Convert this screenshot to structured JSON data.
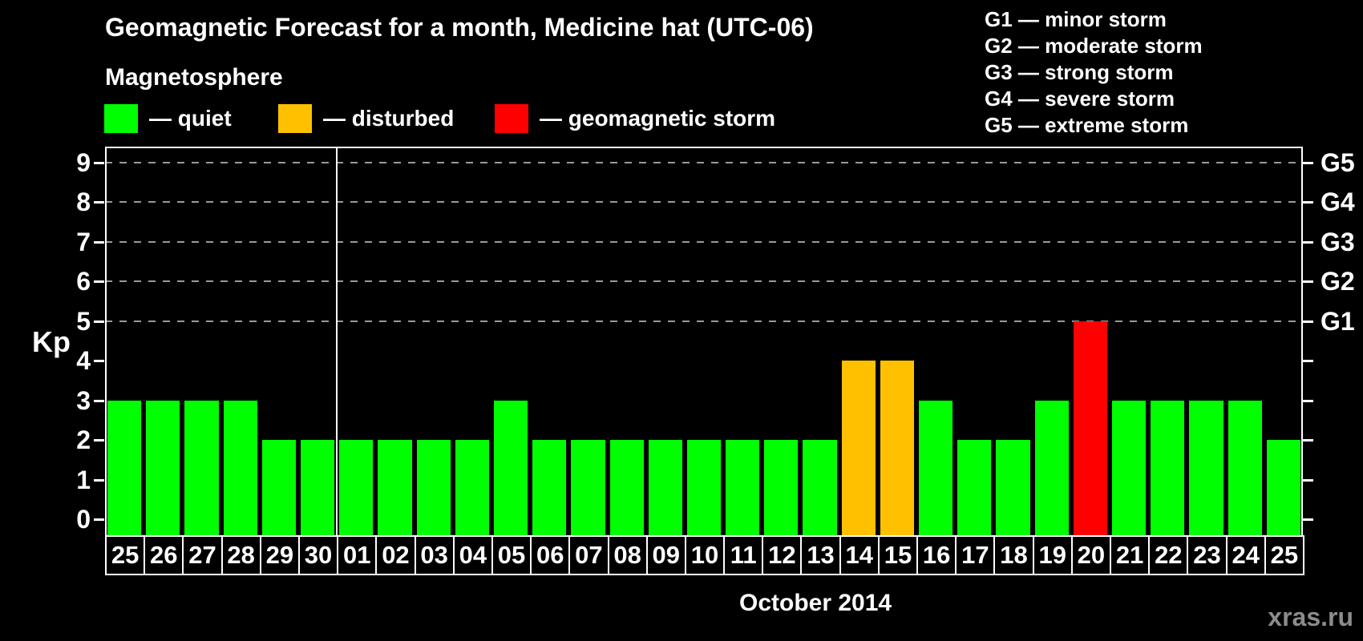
{
  "header": {
    "title": "Geomagnetic Forecast for a month, Medicine hat (UTC-06)",
    "subtitle": "Magnetosphere",
    "legend": [
      {
        "key": "quiet",
        "label": "— quiet",
        "color": "#00FF00"
      },
      {
        "key": "disturbed",
        "label": "— disturbed",
        "color": "#FFC000"
      },
      {
        "key": "storm",
        "label": "— geomagnetic storm",
        "color": "#FF0000"
      }
    ]
  },
  "g_scale": [
    "G1 — minor storm",
    "G2 — moderate storm",
    "G3 — strong storm",
    "G4 — severe storm",
    "G5 — extreme storm"
  ],
  "axes": {
    "y_title": "Kp",
    "x_title": "October 2014",
    "y_ticks": [
      "0",
      "1",
      "2",
      "3",
      "4",
      "5",
      "6",
      "7",
      "8",
      "9"
    ],
    "right_labels": [
      {
        "value": 5,
        "label": "G1"
      },
      {
        "value": 6,
        "label": "G2"
      },
      {
        "value": 7,
        "label": "G3"
      },
      {
        "value": 8,
        "label": "G4"
      },
      {
        "value": 9,
        "label": "G5"
      }
    ]
  },
  "watermark": "xras.ru",
  "chart_data": {
    "type": "bar",
    "title": "Geomagnetic Forecast for a month, Medicine hat (UTC-06)",
    "xlabel": "October 2014",
    "ylabel": "Kp",
    "ylim": [
      0,
      9
    ],
    "categories": [
      "25",
      "26",
      "27",
      "28",
      "29",
      "30",
      "01",
      "02",
      "03",
      "04",
      "05",
      "06",
      "07",
      "08",
      "09",
      "10",
      "11",
      "12",
      "13",
      "14",
      "15",
      "16",
      "17",
      "18",
      "19",
      "20",
      "21",
      "22",
      "23",
      "24",
      "25"
    ],
    "values": [
      3,
      3,
      3,
      3,
      2,
      2,
      2,
      2,
      2,
      2,
      3,
      2,
      2,
      2,
      2,
      2,
      2,
      2,
      2,
      4,
      4,
      3,
      2,
      2,
      3,
      5,
      3,
      3,
      3,
      3,
      2
    ],
    "statuses": [
      "quiet",
      "quiet",
      "quiet",
      "quiet",
      "quiet",
      "quiet",
      "quiet",
      "quiet",
      "quiet",
      "quiet",
      "quiet",
      "quiet",
      "quiet",
      "quiet",
      "quiet",
      "quiet",
      "quiet",
      "quiet",
      "quiet",
      "disturbed",
      "disturbed",
      "quiet",
      "quiet",
      "quiet",
      "quiet",
      "storm",
      "quiet",
      "quiet",
      "quiet",
      "quiet",
      "quiet"
    ],
    "colors": {
      "quiet": "#00FF00",
      "disturbed": "#FFC000",
      "storm": "#FF0000"
    },
    "gridlines": [
      5,
      6,
      7,
      8,
      9
    ],
    "month_boundary_after_index": 5,
    "legend_position": "top-left",
    "grid": "dashed-horizontal-at-storm-levels"
  }
}
